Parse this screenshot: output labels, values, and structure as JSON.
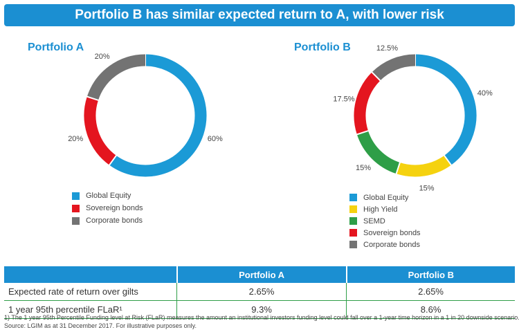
{
  "header": {
    "title": "Portfolio B has similar expected return to A, with lower risk"
  },
  "chart_data": [
    {
      "type": "pie",
      "title": "Portfolio A",
      "donut": true,
      "slices": [
        {
          "name": "Global Equity",
          "value": 60,
          "label": "60%",
          "color": "#1b9ad6"
        },
        {
          "name": "Sovereign bonds",
          "value": 20,
          "label": "20%",
          "color": "#e4151f"
        },
        {
          "name": "Corporate bonds",
          "value": 20,
          "label": "20%",
          "color": "#737373"
        }
      ],
      "legend": [
        "Global Equity",
        "Sovereign bonds",
        "Corporate bonds"
      ],
      "legend_placement": "bottom-left"
    },
    {
      "type": "pie",
      "title": "Portfolio B",
      "donut": true,
      "slices": [
        {
          "name": "Global Equity",
          "value": 40,
          "label": "40%",
          "color": "#1b9ad6"
        },
        {
          "name": "High Yield",
          "value": 15,
          "label": "15%",
          "color": "#f5d20f"
        },
        {
          "name": "SEMD",
          "value": 15,
          "label": "15%",
          "color": "#2e9e47"
        },
        {
          "name": "Sovereign bonds",
          "value": 17.5,
          "label": "17.5%",
          "color": "#e4151f"
        },
        {
          "name": "Corporate bonds",
          "value": 12.5,
          "label": "12.5%",
          "color": "#737373"
        }
      ],
      "legend": [
        "Global Equity",
        "High Yield",
        "SEMD",
        "Sovereign bonds",
        "Corporate bonds"
      ],
      "legend_placement": "bottom-left"
    }
  ],
  "table": {
    "headers": [
      "",
      "Portfolio A",
      "Portfolio B"
    ],
    "rows": [
      {
        "label": "Expected rate of return over gilts",
        "a": "2.65%",
        "b": "2.65%"
      },
      {
        "label": "1 year 95th percentile FLaR¹",
        "a": "9.3%",
        "b": "8.6%"
      }
    ]
  },
  "footnotes": [
    "1) The 1 year 95th Percentile Funding level at Risk (FLaR) measures the amount an institutional investors funding level could fall over a 1-year time horizon in a 1 in 20 downside scenario.",
    "Source: LGIM as at 31 December 2017. For illustrative purposes only."
  ],
  "colors": {
    "accent": "#1b8fd2",
    "divider": "#2e9e47"
  }
}
